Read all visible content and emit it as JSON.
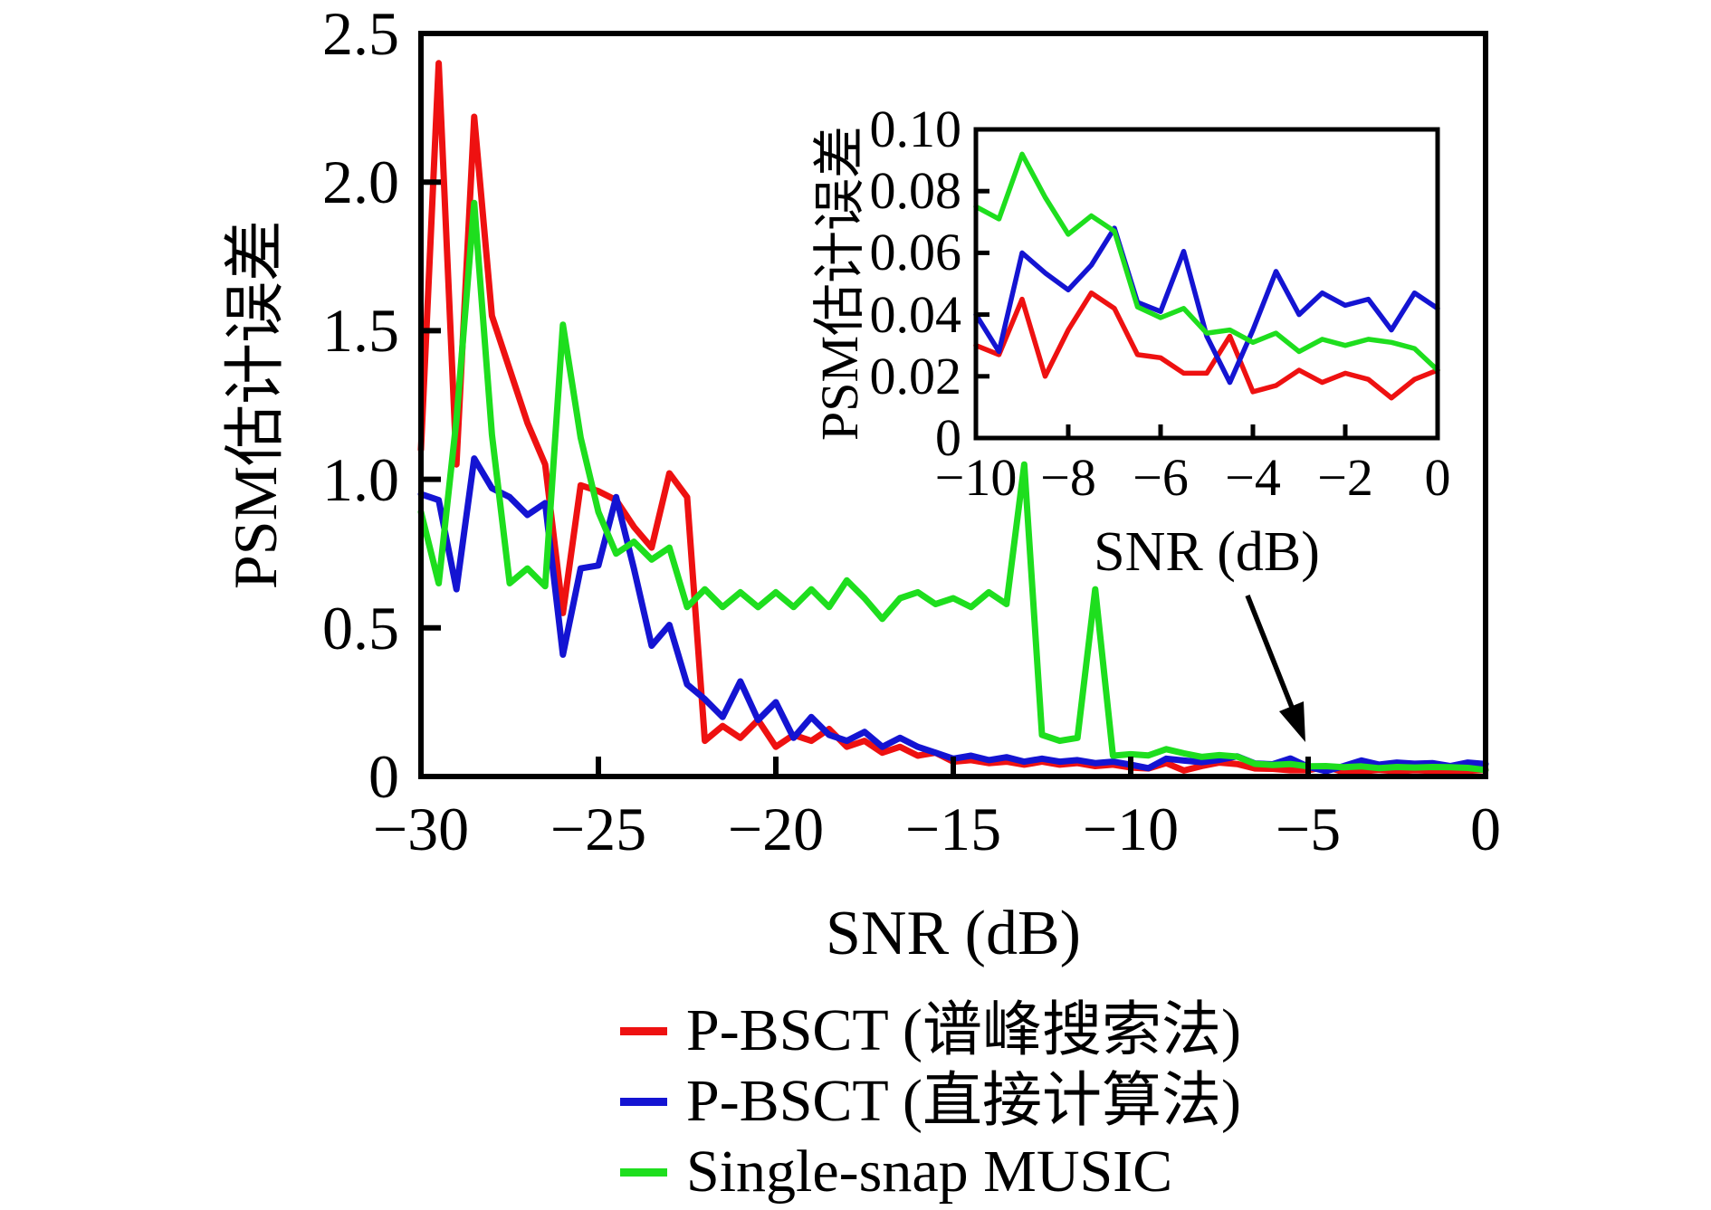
{
  "figure": {
    "background_color": "#ffffff",
    "text_color": "#000000"
  },
  "main_plot": {
    "xlabel": "SNR (dB)",
    "ylabel": "PSM估计误差",
    "x_tick_labels": [
      "−30",
      "−25",
      "−20",
      "−15",
      "−10",
      "−5",
      "0"
    ],
    "x_tick_values": [
      -30,
      -25,
      -20,
      -15,
      -10,
      -5,
      0
    ],
    "y_tick_labels": [
      "0",
      "0.5",
      "1.0",
      "1.5",
      "2.0",
      "2.5"
    ],
    "y_tick_values": [
      0,
      0.5,
      1.0,
      1.5,
      2.0,
      2.5
    ]
  },
  "inset_plot": {
    "xlabel": "SNR (dB)",
    "ylabel": "PSM估计误差",
    "x_tick_labels": [
      "−10",
      "−8",
      "−6",
      "−4",
      "−2",
      "0"
    ],
    "x_tick_values": [
      -10,
      -8,
      -6,
      -4,
      -2,
      0
    ],
    "y_tick_labels": [
      "0",
      "0.02",
      "0.04",
      "0.06",
      "0.08",
      "0.10"
    ],
    "y_tick_values": [
      0,
      0.02,
      0.04,
      0.06,
      0.08,
      0.1
    ]
  },
  "legend": {
    "items": [
      {
        "label": "P-BSCT (谱峰搜索法)",
        "color": "#ee1111"
      },
      {
        "label": "P-BSCT (直接计算法)",
        "color": "#1414d2"
      },
      {
        "label": "Single-snap MUSIC",
        "color": "#1ede1e"
      }
    ]
  },
  "icons": {
    "annotation_arrow": "arrow-pointing-down-right-from-inset-to-main-curves"
  },
  "chart_data": {
    "type": "line",
    "title": "",
    "xlabel": "SNR (dB)",
    "ylabel": "PSM估计误差",
    "xlim": [
      -30,
      0
    ],
    "ylim": [
      0,
      2.5
    ],
    "grid": false,
    "legend_position": "below-plot-left",
    "x": [
      -30,
      -29.5,
      -29,
      -28.5,
      -28,
      -27.5,
      -27,
      -26.5,
      -26,
      -25.5,
      -25,
      -24.5,
      -24,
      -23.5,
      -23,
      -22.5,
      -22,
      -21.5,
      -21,
      -20.5,
      -20,
      -19.5,
      -19,
      -18.5,
      -18,
      -17.5,
      -17,
      -16.5,
      -16,
      -15.5,
      -15,
      -14.5,
      -14,
      -13.5,
      -13,
      -12.5,
      -12,
      -11.5,
      -11,
      -10.5,
      -10,
      -9.5,
      -9,
      -8.5,
      -8,
      -7.5,
      -7,
      -6.5,
      -6,
      -5.5,
      -5,
      -4.5,
      -4,
      -3.5,
      -3,
      -2.5,
      -2,
      -1.5,
      -1,
      -0.5,
      0
    ],
    "series": [
      {
        "name": "P-BSCT (谱峰搜索法)",
        "color": "#ee1111",
        "values": [
          1.1,
          2.4,
          1.05,
          2.22,
          1.55,
          1.37,
          1.19,
          1.05,
          0.55,
          0.98,
          0.96,
          0.93,
          0.84,
          0.77,
          1.02,
          0.94,
          0.12,
          0.17,
          0.13,
          0.19,
          0.1,
          0.14,
          0.12,
          0.16,
          0.1,
          0.12,
          0.08,
          0.1,
          0.07,
          0.08,
          0.05,
          0.055,
          0.045,
          0.05,
          0.04,
          0.05,
          0.04,
          0.045,
          0.035,
          0.04,
          0.03,
          0.027,
          0.045,
          0.02,
          0.035,
          0.047,
          0.042,
          0.027,
          0.026,
          0.021,
          0.021,
          0.033,
          0.015,
          0.017,
          0.022,
          0.018,
          0.021,
          0.019,
          0.013,
          0.019,
          0.022
        ]
      },
      {
        "name": "P-BSCT (直接计算法)",
        "color": "#1414d2",
        "values": [
          0.95,
          0.93,
          0.63,
          1.07,
          0.97,
          0.94,
          0.88,
          0.92,
          0.41,
          0.7,
          0.71,
          0.94,
          0.7,
          0.44,
          0.51,
          0.31,
          0.26,
          0.2,
          0.32,
          0.19,
          0.25,
          0.13,
          0.2,
          0.14,
          0.12,
          0.15,
          0.1,
          0.13,
          0.1,
          0.08,
          0.06,
          0.07,
          0.055,
          0.065,
          0.05,
          0.06,
          0.05,
          0.055,
          0.045,
          0.05,
          0.04,
          0.028,
          0.06,
          0.0535,
          0.048,
          0.056,
          0.068,
          0.044,
          0.041,
          0.0605,
          0.033,
          0.018,
          0.035,
          0.054,
          0.04,
          0.047,
          0.043,
          0.045,
          0.035,
          0.047,
          0.042
        ]
      },
      {
        "name": "Single-snap MUSIC",
        "color": "#1ede1e",
        "values": [
          0.89,
          0.65,
          1.2,
          1.93,
          1.15,
          0.65,
          0.7,
          0.64,
          1.52,
          1.14,
          0.89,
          0.75,
          0.79,
          0.73,
          0.77,
          0.57,
          0.63,
          0.57,
          0.62,
          0.57,
          0.62,
          0.57,
          0.63,
          0.57,
          0.66,
          0.6,
          0.53,
          0.6,
          0.62,
          0.58,
          0.6,
          0.57,
          0.62,
          0.58,
          1.05,
          0.14,
          0.12,
          0.13,
          0.63,
          0.07,
          0.075,
          0.071,
          0.092,
          0.078,
          0.066,
          0.072,
          0.067,
          0.0425,
          0.039,
          0.042,
          0.034,
          0.035,
          0.031,
          0.034,
          0.028,
          0.032,
          0.03,
          0.032,
          0.031,
          0.029,
          0.022
        ]
      }
    ],
    "inset": {
      "type": "line",
      "xlabel": "SNR (dB)",
      "ylabel": "PSM估计误差",
      "xlim": [
        -10,
        0
      ],
      "ylim": [
        0,
        0.1
      ],
      "x": [
        -10,
        -9.5,
        -9,
        -8.5,
        -8,
        -7.5,
        -7,
        -6.5,
        -6,
        -5.5,
        -5,
        -4.5,
        -4,
        -3.5,
        -3,
        -2.5,
        -2,
        -1.5,
        -1,
        -0.5,
        0
      ],
      "series": [
        {
          "name": "P-BSCT (谱峰搜索法)",
          "color": "#ee1111",
          "values": [
            0.03,
            0.027,
            0.045,
            0.02,
            0.035,
            0.047,
            0.042,
            0.027,
            0.026,
            0.021,
            0.021,
            0.033,
            0.015,
            0.017,
            0.022,
            0.018,
            0.021,
            0.019,
            0.013,
            0.019,
            0.022
          ]
        },
        {
          "name": "P-BSCT (直接计算法)",
          "color": "#1414d2",
          "values": [
            0.04,
            0.028,
            0.06,
            0.0535,
            0.048,
            0.056,
            0.068,
            0.044,
            0.041,
            0.0605,
            0.033,
            0.018,
            0.035,
            0.054,
            0.04,
            0.047,
            0.043,
            0.045,
            0.035,
            0.047,
            0.042
          ]
        },
        {
          "name": "Single-snap MUSIC",
          "color": "#1ede1e",
          "values": [
            0.075,
            0.071,
            0.092,
            0.078,
            0.066,
            0.072,
            0.067,
            0.0425,
            0.039,
            0.042,
            0.034,
            0.035,
            0.031,
            0.034,
            0.028,
            0.032,
            0.03,
            0.032,
            0.031,
            0.029,
            0.022
          ]
        }
      ]
    },
    "annotation": {
      "type": "arrow",
      "note": "arrow from below inset x-axis label pointing to overlapping main curves near −5 dB"
    }
  }
}
